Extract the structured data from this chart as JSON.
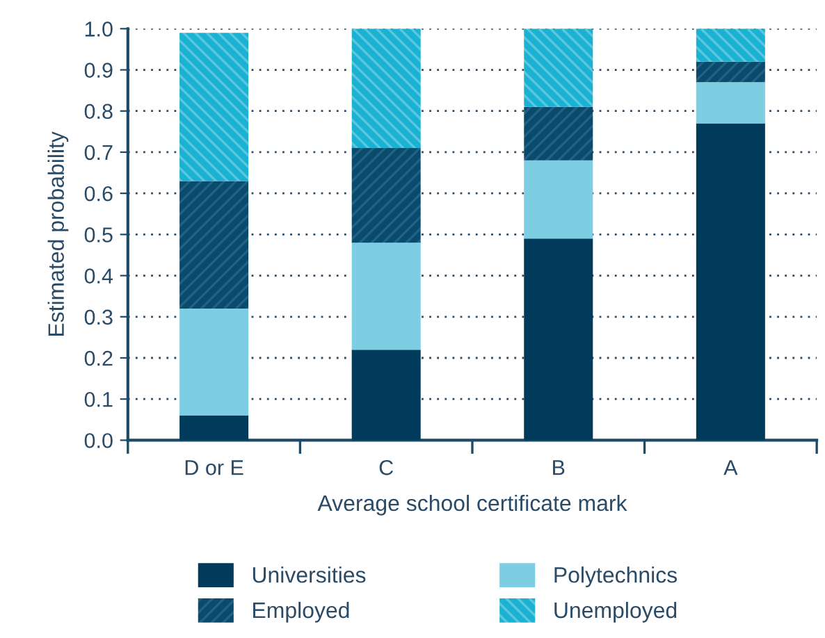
{
  "chart_data": {
    "type": "bar",
    "stacked": true,
    "xlabel": "Average school certificate mark",
    "ylabel": "Estimated probability",
    "categories": [
      "D or E",
      "C",
      "B",
      "A"
    ],
    "series": [
      {
        "name": "Universities",
        "color": "#003b5c",
        "values": [
          0.06,
          0.22,
          0.49,
          0.77
        ]
      },
      {
        "name": "Polytechnics",
        "color": "#7ecee3",
        "values": [
          0.26,
          0.26,
          0.19,
          0.1
        ]
      },
      {
        "name": "Employed",
        "color": "#0a4a6c",
        "values": [
          0.31,
          0.23,
          0.13,
          0.05
        ]
      },
      {
        "name": "Unemployed",
        "color": "#1ab2d2",
        "values": [
          0.36,
          0.29,
          0.19,
          0.08
        ]
      }
    ],
    "ylim": [
      0,
      1.0
    ],
    "yticks": [
      {
        "value": 0,
        "label": "0.0"
      },
      0.1,
      0.2,
      0.3,
      0.4,
      0.5,
      0.6,
      0.7,
      0.8,
      0.9,
      {
        "value": 1,
        "label": "1.0"
      }
    ],
    "grid": "y",
    "legend": "bottom"
  }
}
